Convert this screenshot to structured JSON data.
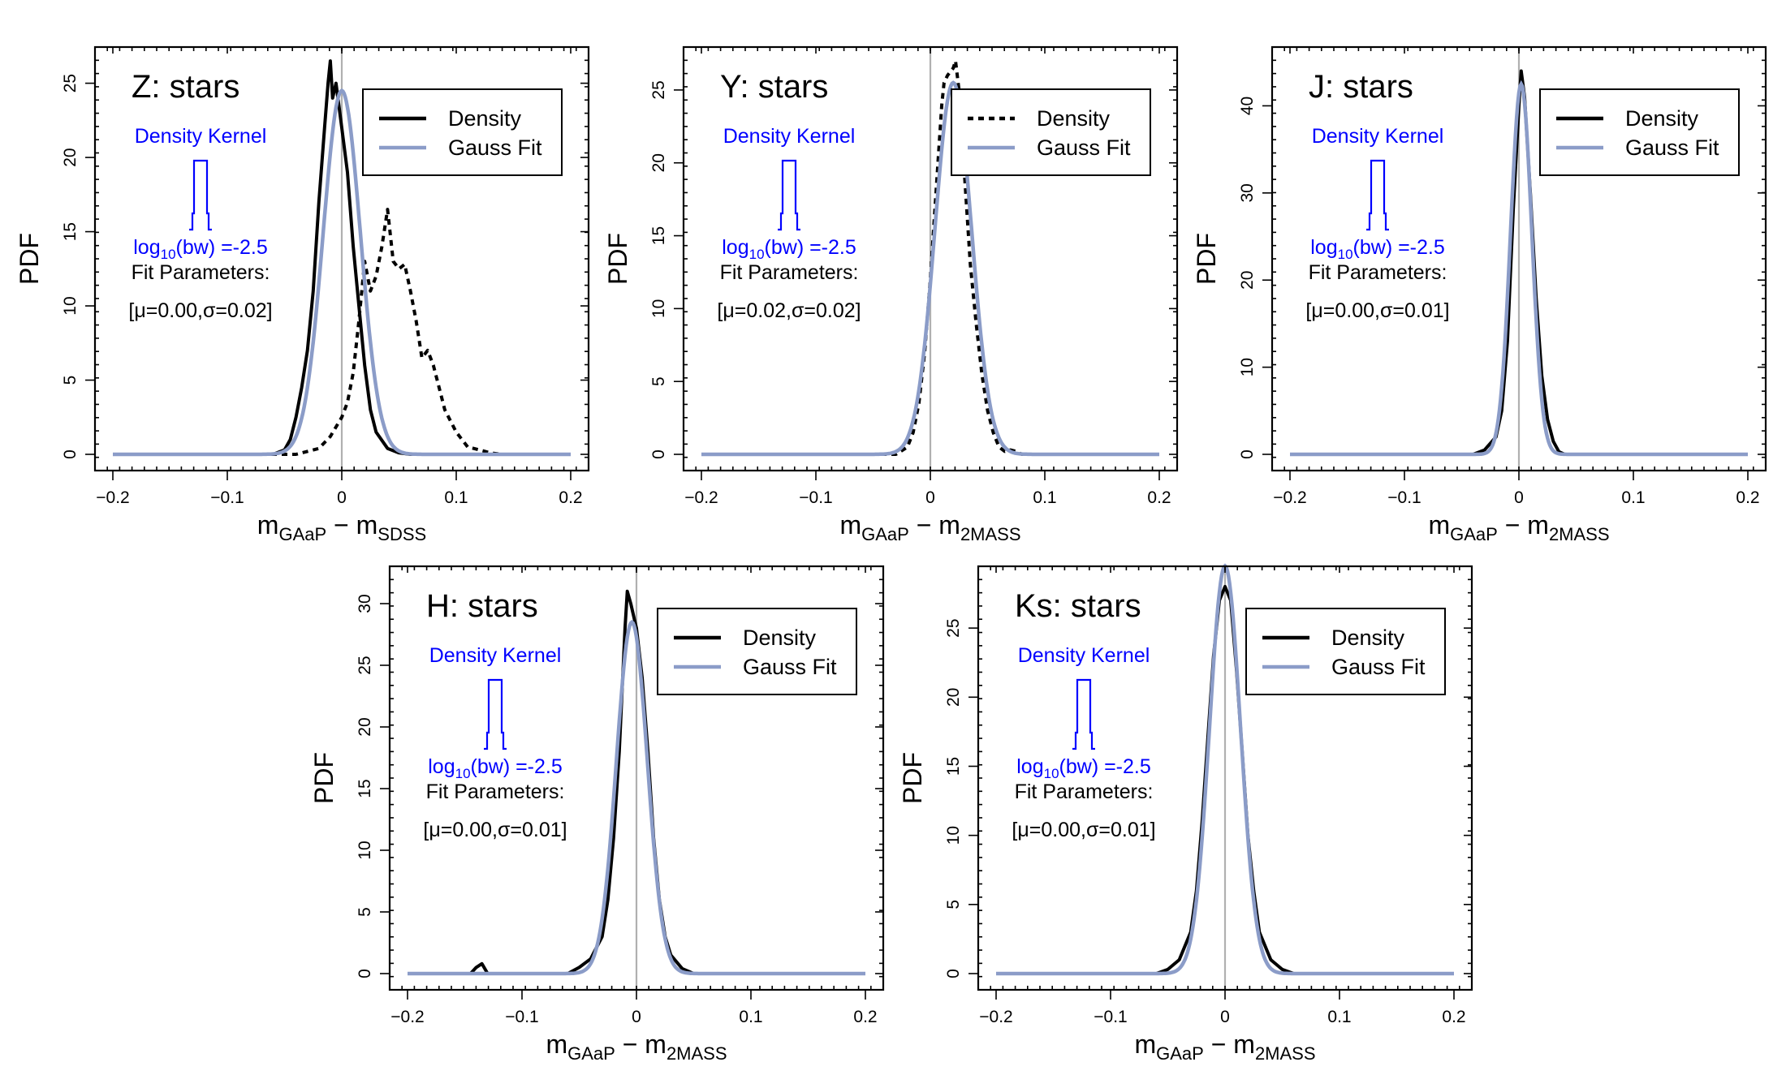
{
  "chart_data": [
    {
      "type": "line",
      "title": "Z: stars",
      "ylabel": "PDF",
      "xlabel": {
        "main": "m",
        "sub1": "GAaP",
        "minus": " − m",
        "sub2": "SDSS"
      },
      "xlim": [
        -0.2,
        0.2
      ],
      "ylim": [
        0,
        27
      ],
      "xticks": [
        -0.2,
        -0.1,
        0,
        0.1,
        0.2
      ],
      "xtick_labels": [
        "−0.2",
        "−0.1",
        "0",
        "0.1",
        "0.2"
      ],
      "yticks": [
        0,
        5,
        10,
        15,
        20,
        25
      ],
      "ytick_labels": [
        "0",
        "5",
        "10",
        "15",
        "20",
        "25"
      ],
      "legend": {
        "entries": [
          {
            "label": "Density",
            "style": "solid"
          },
          {
            "label": "Gauss Fit",
            "style": "gauss"
          }
        ]
      },
      "kernel_label": "Density Kernel",
      "bw_label": {
        "pre": "log",
        "sub": "10",
        "post": "(bw) =-2.5"
      },
      "fit_label": "Fit Parameters:",
      "fit_params": "[μ=0.00,σ=0.02]",
      "gauss": {
        "mu": 0.0,
        "sigma": 0.0163,
        "peak": 24.5
      },
      "series": [
        {
          "name": "Density",
          "style": "solid",
          "x": [
            -0.2,
            -0.06,
            -0.05,
            -0.045,
            -0.04,
            -0.035,
            -0.03,
            -0.025,
            -0.02,
            -0.015,
            -0.012,
            -0.01,
            -0.008,
            -0.005,
            0,
            0.005,
            0.01,
            0.015,
            0.02,
            0.025,
            0.03,
            0.04,
            0.05,
            0.06,
            0.2
          ],
          "y": [
            0,
            0,
            0.3,
            1,
            2.5,
            4.5,
            7,
            11,
            17,
            22,
            25,
            26.5,
            24,
            25,
            22,
            19,
            14,
            10,
            6,
            3,
            1.5,
            0.4,
            0.1,
            0,
            0
          ]
        },
        {
          "name": "Density (other)",
          "style": "dashed",
          "x": [
            -0.2,
            -0.04,
            -0.02,
            -0.01,
            0,
            0.005,
            0.01,
            0.015,
            0.02,
            0.025,
            0.03,
            0.035,
            0.04,
            0.045,
            0.05,
            0.055,
            0.06,
            0.065,
            0.07,
            0.075,
            0.08,
            0.085,
            0.09,
            0.1,
            0.11,
            0.12,
            0.13,
            0.14,
            0.2
          ],
          "y": [
            0,
            0,
            0.4,
            1.2,
            2.5,
            3.5,
            5.5,
            9,
            13,
            11,
            12,
            14,
            16.5,
            13,
            12.5,
            12.8,
            11,
            9,
            6.5,
            7,
            6,
            4.5,
            3,
            1.5,
            0.5,
            0.3,
            0.1,
            0,
            0
          ]
        }
      ]
    },
    {
      "type": "line",
      "title": "Y: stars",
      "ylabel": "PDF",
      "xlabel": {
        "main": "m",
        "sub1": "GAaP",
        "minus": " − m",
        "sub2": "2MASS"
      },
      "xlim": [
        -0.2,
        0.2
      ],
      "ylim": [
        0,
        27.5
      ],
      "xticks": [
        -0.2,
        -0.1,
        0,
        0.1,
        0.2
      ],
      "xtick_labels": [
        "−0.2",
        "−0.1",
        "0",
        "0.1",
        "0.2"
      ],
      "yticks": [
        0,
        5,
        10,
        15,
        20,
        25
      ],
      "ytick_labels": [
        "0",
        "5",
        "10",
        "15",
        "20",
        "25"
      ],
      "legend": {
        "entries": [
          {
            "label": "Density",
            "style": "dashed"
          },
          {
            "label": "Gauss Fit",
            "style": "gauss"
          }
        ]
      },
      "kernel_label": "Density Kernel",
      "bw_label": {
        "pre": "log",
        "sub": "10",
        "post": "(bw) =-2.5"
      },
      "fit_label": "Fit Parameters:",
      "fit_params": "[μ=0.02,σ=0.02]",
      "gauss": {
        "mu": 0.02,
        "sigma": 0.016,
        "peak": 25.5
      },
      "series": [
        {
          "name": "Density",
          "style": "dashed",
          "x": [
            -0.2,
            -0.03,
            -0.02,
            -0.015,
            -0.01,
            -0.005,
            0,
            0.005,
            0.01,
            0.012,
            0.015,
            0.02,
            0.022,
            0.025,
            0.03,
            0.035,
            0.04,
            0.045,
            0.05,
            0.055,
            0.06,
            0.065,
            0.07,
            0.075,
            0.08,
            0.2
          ],
          "y": [
            0,
            0,
            0.5,
            1.5,
            3.5,
            7,
            12,
            18,
            24,
            25.5,
            26,
            26.5,
            27,
            25,
            19,
            13,
            9,
            5.5,
            3,
            1.5,
            0.5,
            0.2,
            0.3,
            0.2,
            0,
            0
          ]
        }
      ]
    },
    {
      "type": "line",
      "title": "J: stars",
      "ylabel": "PDF",
      "xlabel": {
        "main": "m",
        "sub1": "GAaP",
        "minus": " − m",
        "sub2": "2MASS"
      },
      "xlim": [
        -0.2,
        0.2
      ],
      "ylim": [
        0,
        46
      ],
      "xticks": [
        -0.2,
        -0.1,
        0,
        0.1,
        0.2
      ],
      "xtick_labels": [
        "−0.2",
        "−0.1",
        "0",
        "0.1",
        "0.2"
      ],
      "yticks": [
        0,
        10,
        20,
        30,
        40
      ],
      "ytick_labels": [
        "0",
        "10",
        "20",
        "30",
        "40"
      ],
      "legend": {
        "entries": [
          {
            "label": "Density",
            "style": "solid"
          },
          {
            "label": "Gauss Fit",
            "style": "gauss"
          }
        ]
      },
      "kernel_label": "Density Kernel",
      "bw_label": {
        "pre": "log",
        "sub": "10",
        "post": "(bw) =-2.5"
      },
      "fit_label": "Fit Parameters:",
      "fit_params": "[μ=0.00,σ=0.01]",
      "gauss": {
        "mu": 0.002,
        "sigma": 0.0092,
        "peak": 42.5
      },
      "series": [
        {
          "name": "Density",
          "style": "solid",
          "x": [
            -0.2,
            -0.04,
            -0.03,
            -0.02,
            -0.015,
            -0.01,
            -0.005,
            0,
            0.002,
            0.005,
            0.01,
            0.015,
            0.02,
            0.025,
            0.03,
            0.035,
            0.04,
            0.2
          ],
          "y": [
            0,
            0,
            0.5,
            2,
            5,
            13,
            28,
            40,
            44,
            41,
            30,
            18,
            9,
            4,
            1.5,
            0.3,
            0,
            0
          ]
        }
      ]
    },
    {
      "type": "line",
      "title": "H: stars",
      "ylabel": "PDF",
      "xlabel": {
        "main": "m",
        "sub1": "GAaP",
        "minus": " − m",
        "sub2": "2MASS"
      },
      "xlim": [
        -0.2,
        0.2
      ],
      "ylim": [
        0,
        32.5
      ],
      "xticks": [
        -0.2,
        -0.1,
        0,
        0.1,
        0.2
      ],
      "xtick_labels": [
        "−0.2",
        "−0.1",
        "0",
        "0.1",
        "0.2"
      ],
      "yticks": [
        0,
        5,
        10,
        15,
        20,
        25,
        30
      ],
      "ytick_labels": [
        "0",
        "5",
        "10",
        "15",
        "20",
        "25",
        "30"
      ],
      "legend": {
        "entries": [
          {
            "label": "Density",
            "style": "solid"
          },
          {
            "label": "Gauss Fit",
            "style": "gauss"
          }
        ]
      },
      "kernel_label": "Density Kernel",
      "bw_label": {
        "pre": "log",
        "sub": "10",
        "post": "(bw) =-2.5"
      },
      "fit_label": "Fit Parameters:",
      "fit_params": "[μ=0.00,σ=0.01]",
      "gauss": {
        "mu": -0.004,
        "sigma": 0.0135,
        "peak": 28.5
      },
      "series": [
        {
          "name": "Density",
          "style": "solid",
          "x": [
            -0.2,
            -0.145,
            -0.14,
            -0.135,
            -0.13,
            -0.06,
            -0.05,
            -0.04,
            -0.03,
            -0.025,
            -0.02,
            -0.015,
            -0.01,
            -0.008,
            -0.005,
            0,
            0.005,
            0.01,
            0.015,
            0.02,
            0.025,
            0.03,
            0.04,
            0.05,
            0.2
          ],
          "y": [
            0,
            0,
            0.5,
            0.8,
            0,
            0,
            0.5,
            1.2,
            3,
            6,
            11,
            18,
            28,
            31,
            30,
            28,
            24,
            18,
            11,
            6,
            3,
            1.5,
            0.4,
            0,
            0
          ]
        }
      ]
    },
    {
      "type": "line",
      "title": "Ks: stars",
      "ylabel": "PDF",
      "xlabel": {
        "main": "m",
        "sub1": "GAaP",
        "minus": " − m",
        "sub2": "2MASS"
      },
      "xlim": [
        -0.2,
        0.2
      ],
      "ylim": [
        0,
        29
      ],
      "xticks": [
        -0.2,
        -0.1,
        0,
        0.1,
        0.2
      ],
      "xtick_labels": [
        "−0.2",
        "−0.1",
        "0",
        "0.1",
        "0.2"
      ],
      "yticks": [
        0,
        5,
        10,
        15,
        20,
        25
      ],
      "ytick_labels": [
        "0",
        "5",
        "10",
        "15",
        "20",
        "25"
      ],
      "legend": {
        "entries": [
          {
            "label": "Density",
            "style": "solid"
          },
          {
            "label": "Gauss Fit",
            "style": "gauss"
          }
        ]
      },
      "kernel_label": "Density Kernel",
      "bw_label": {
        "pre": "log",
        "sub": "10",
        "post": "(bw) =-2.5"
      },
      "fit_label": "Fit Parameters:",
      "fit_params": "[μ=0.00,σ=0.01]",
      "gauss": {
        "mu": 0.0,
        "sigma": 0.0135,
        "peak": 29.5
      },
      "series": [
        {
          "name": "Density",
          "style": "solid",
          "x": [
            -0.2,
            -0.06,
            -0.05,
            -0.04,
            -0.03,
            -0.025,
            -0.02,
            -0.015,
            -0.01,
            -0.005,
            0,
            0.005,
            0.01,
            0.015,
            0.02,
            0.025,
            0.03,
            0.04,
            0.05,
            0.06,
            0.2
          ],
          "y": [
            0,
            0,
            0.3,
            1,
            3,
            6,
            11,
            17,
            23,
            27,
            28,
            27,
            22,
            16,
            10,
            6,
            3,
            1,
            0.3,
            0,
            0
          ]
        }
      ]
    }
  ],
  "colors": {
    "gauss": "#8b9cc8",
    "density": "#000000",
    "kernel": "#0000ff",
    "zero_line": "#b0b0b0"
  }
}
